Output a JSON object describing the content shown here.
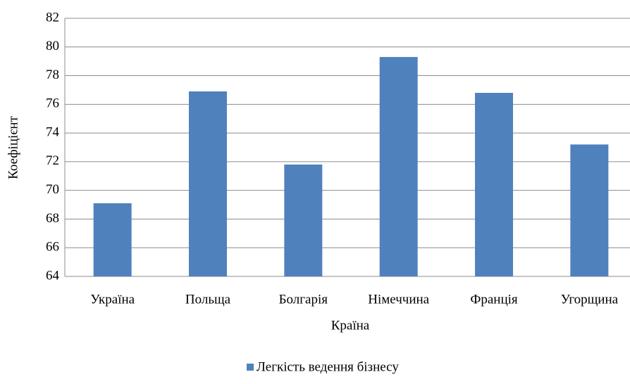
{
  "chart_data": {
    "type": "bar",
    "x_label": "Країна",
    "y_label": "Коефіцієнт",
    "categories": [
      "Україна",
      "Польща",
      "Болгарія",
      "Німеччина",
      "Франція",
      "Угорщина"
    ],
    "series": [
      {
        "name": "Легкість ведення бізнесу",
        "color": "#4f81bd",
        "values": [
          69.1,
          76.9,
          71.8,
          79.3,
          76.8,
          73.2
        ]
      }
    ],
    "ylim": [
      64,
      82
    ],
    "yticks": [
      64,
      66,
      68,
      70,
      72,
      74,
      76,
      78,
      80,
      82
    ],
    "grid": true,
    "legend": "bottom"
  }
}
